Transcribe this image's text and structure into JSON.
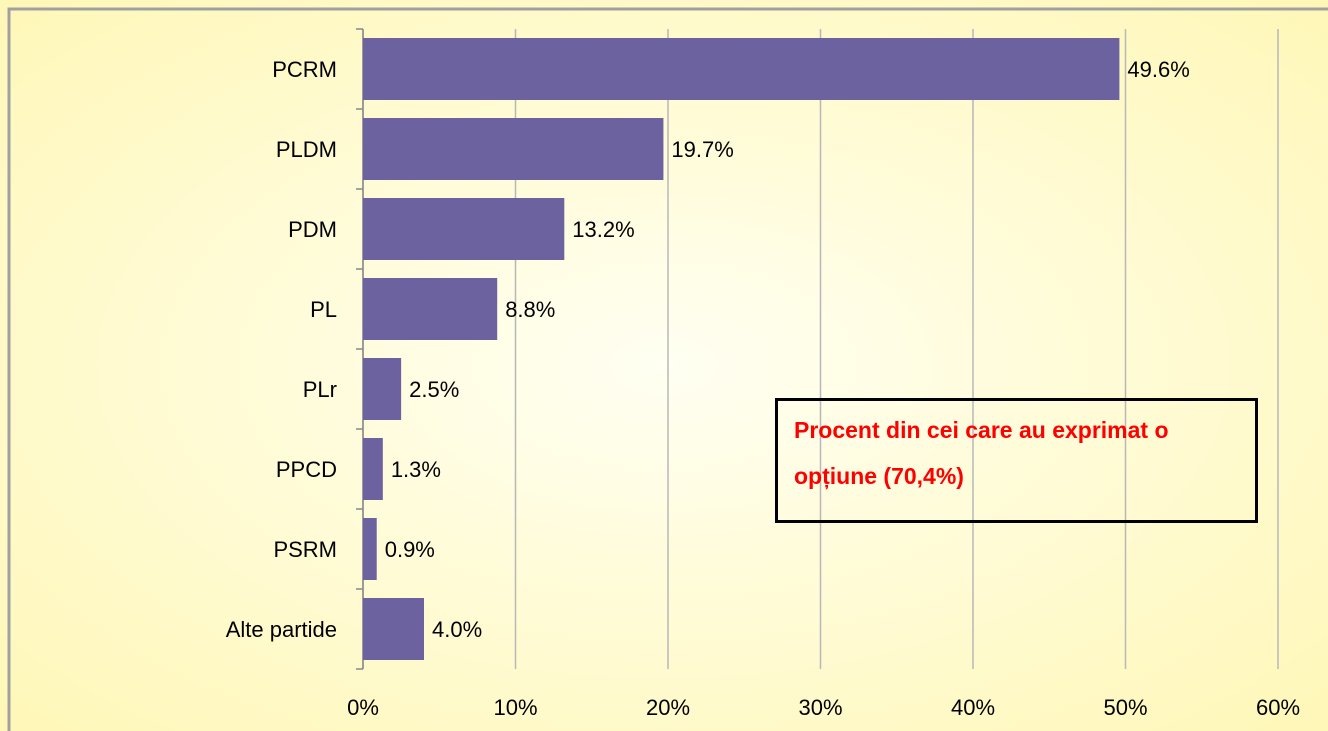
{
  "chart_data": {
    "type": "barh",
    "categories": [
      "PCRM",
      "PLDM",
      "PDM",
      "PL",
      "PLr",
      "PPCD",
      "PSRM",
      "Alte partide"
    ],
    "values": [
      49.6,
      19.7,
      13.2,
      8.8,
      2.5,
      1.3,
      0.9,
      4.0
    ],
    "value_labels": [
      "49.6%",
      "19.7%",
      "13.2%",
      "8.8%",
      "2.5%",
      "1.3%",
      "0.9%",
      "4.0%"
    ],
    "color": "#6d62a0",
    "xlim": [
      0,
      60
    ],
    "xticks": [
      {
        "value": 0,
        "label": "0%"
      },
      {
        "value": 10,
        "label": "10%"
      },
      {
        "value": 20,
        "label": "20%"
      },
      {
        "value": 30,
        "label": "30%"
      },
      {
        "value": 40,
        "label": "40%"
      },
      {
        "value": 50,
        "label": "50%"
      },
      {
        "value": 60,
        "label": "60%"
      }
    ],
    "grid": true,
    "annotation": "Procent din cei care au exprimat o opțiune (70,4%)"
  }
}
